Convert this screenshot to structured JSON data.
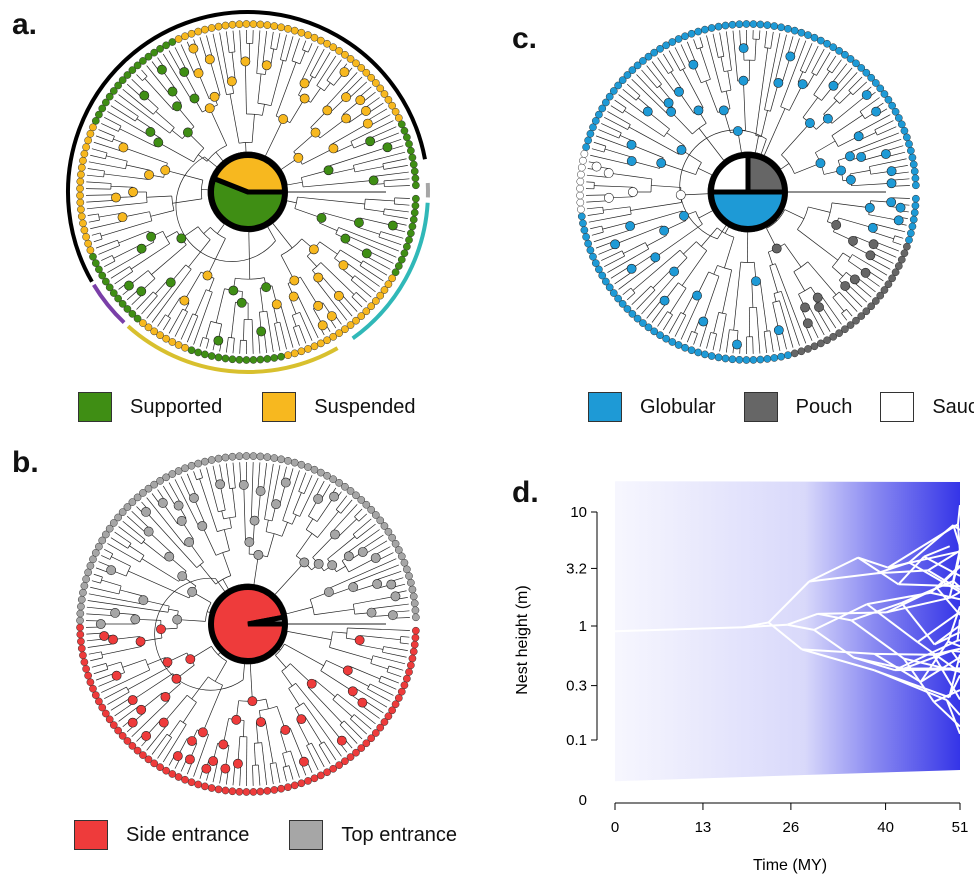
{
  "panels": {
    "a": {
      "label": "a.",
      "legend": [
        {
          "label": "Supported",
          "color": "#3f8e14"
        },
        {
          "label": "Suspended",
          "color": "#f7b81f"
        }
      ],
      "root_pie": [
        0.56,
        0.44
      ]
    },
    "b": {
      "label": "b.",
      "legend": [
        {
          "label": "Side entrance",
          "color": "#ee3b3b"
        },
        {
          "label": "Top entrance",
          "color": "#a6a6a6"
        }
      ],
      "root_pie": [
        0.97,
        0.03
      ]
    },
    "c": {
      "label": "c.",
      "legend": [
        {
          "label": "Globular",
          "color": "#1e9ad6"
        },
        {
          "label": "Pouch",
          "color": "#666666"
        },
        {
          "label": "Saucer",
          "color": "#ffffff"
        }
      ],
      "root_pie": [
        0.5,
        0.25,
        0.25
      ]
    },
    "d": {
      "label": "d."
    }
  },
  "chart_data": {
    "type": "line",
    "ylabel": "Nest height (m)",
    "xlabel": "Time (MY)",
    "x_ticks": [
      "0",
      "13",
      "26",
      "40",
      "51"
    ],
    "y_ticks": [
      "10",
      "3.2",
      "1",
      "0.3",
      "0.1",
      "0"
    ],
    "xlim": [
      0,
      51
    ],
    "y_scale": "log",
    "series_color": "#2a2ae6",
    "line_color": "#ffffff",
    "root_value": 0.9,
    "root_split_time": 19
  }
}
